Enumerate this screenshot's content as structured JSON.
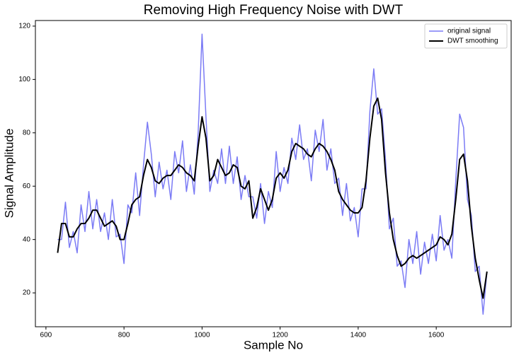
{
  "chart_data": {
    "type": "line",
    "title": "Removing High Frequency Noise with DWT",
    "xlabel": "Sample No",
    "ylabel": "Signal Amplitude",
    "x": [
      630,
      640,
      650,
      660,
      670,
      680,
      690,
      700,
      710,
      720,
      730,
      740,
      750,
      760,
      770,
      780,
      790,
      800,
      810,
      820,
      830,
      840,
      850,
      860,
      870,
      880,
      890,
      900,
      910,
      920,
      930,
      940,
      950,
      960,
      970,
      980,
      990,
      1000,
      1010,
      1020,
      1030,
      1040,
      1050,
      1060,
      1070,
      1080,
      1090,
      1100,
      1110,
      1120,
      1130,
      1140,
      1150,
      1160,
      1170,
      1180,
      1190,
      1200,
      1210,
      1220,
      1230,
      1240,
      1250,
      1260,
      1270,
      1280,
      1290,
      1300,
      1310,
      1320,
      1330,
      1340,
      1350,
      1360,
      1370,
      1380,
      1390,
      1400,
      1410,
      1420,
      1430,
      1440,
      1450,
      1460,
      1470,
      1480,
      1490,
      1500,
      1510,
      1520,
      1530,
      1540,
      1550,
      1560,
      1570,
      1580,
      1590,
      1600,
      1610,
      1620,
      1630,
      1640,
      1650,
      1660,
      1670,
      1680,
      1690,
      1700,
      1710,
      1720,
      1730
    ],
    "series": [
      {
        "name": "original signal",
        "color": "#7b7bf5",
        "width": 1.5,
        "values": [
          40,
          40,
          54,
          37,
          43,
          35,
          53,
          43,
          58,
          44,
          55,
          43,
          50,
          40,
          55,
          41,
          42,
          31,
          53,
          50,
          65,
          49,
          68,
          84,
          72,
          56,
          69,
          59,
          66,
          55,
          73,
          65,
          77,
          58,
          68,
          57,
          80,
          117,
          86,
          58,
          66,
          61,
          74,
          61,
          75,
          61,
          71,
          55,
          64,
          56,
          56,
          48,
          61,
          46,
          58,
          52,
          73,
          58,
          67,
          61,
          78,
          70,
          83,
          70,
          74,
          62,
          81,
          73,
          85,
          66,
          74,
          61,
          63,
          49,
          61,
          47,
          52,
          41,
          59,
          59,
          88,
          104,
          87,
          89,
          70,
          44,
          48,
          30,
          32,
          22,
          40,
          31,
          43,
          27,
          39,
          31,
          42,
          32,
          49,
          36,
          40,
          33,
          62,
          87,
          82,
          55,
          49,
          28,
          30,
          12,
          28
        ]
      },
      {
        "name": "DWT smoothing",
        "color": "#000000",
        "width": 2,
        "values": [
          35,
          46,
          46,
          41,
          41,
          44,
          46,
          46,
          48,
          51,
          51,
          48,
          45,
          46,
          47,
          45,
          40,
          40,
          46,
          53,
          55,
          56,
          64,
          70,
          67,
          62,
          61,
          63,
          64,
          64,
          66,
          68,
          67,
          65,
          64,
          62,
          75,
          86,
          78,
          62,
          64,
          70,
          67,
          64,
          65,
          68,
          67,
          60,
          59,
          62,
          48,
          52,
          59,
          55,
          51,
          55,
          63,
          65,
          63,
          66,
          73,
          76,
          75,
          74,
          72,
          71,
          74,
          76,
          75,
          73,
          70,
          66,
          58,
          55,
          53,
          51,
          50,
          50,
          52,
          62,
          78,
          90,
          93,
          85,
          65,
          50,
          40,
          34,
          30,
          31,
          33,
          34,
          33,
          34,
          35,
          36,
          37,
          38,
          41,
          40,
          38,
          42,
          55,
          70,
          72,
          62,
          45,
          33,
          25,
          18,
          28
        ]
      }
    ],
    "xlim": [
      573,
      1792
    ],
    "ylim": [
      7.3,
      122.1
    ],
    "xticks": [
      600,
      800,
      1000,
      1200,
      1400,
      1600
    ],
    "yticks": [
      20,
      40,
      60,
      80,
      100,
      120
    ],
    "legend": "upper right"
  }
}
